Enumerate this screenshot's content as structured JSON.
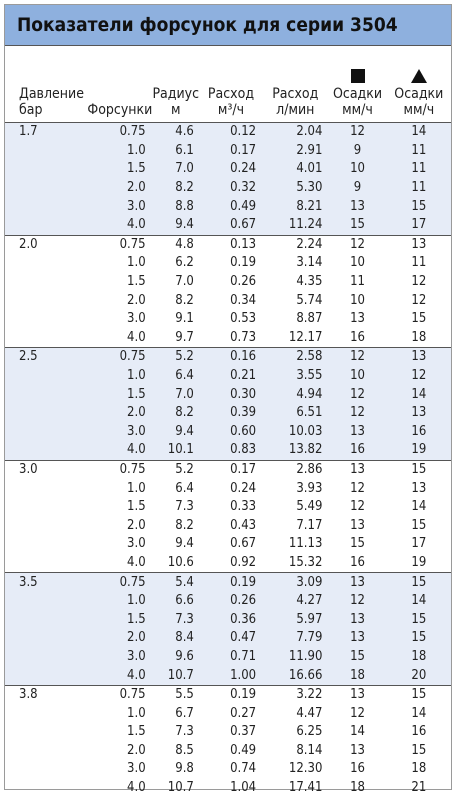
{
  "title": "Показатели форсунок для серии 3504",
  "header": [
    [
      "Давление",
      "бар"
    ],
    [
      "Форсунки",
      ""
    ],
    [
      "Радиус",
      "м"
    ],
    [
      "Расход",
      "м³/ч"
    ],
    [
      "Расход",
      "л/мин"
    ],
    [
      "Осадки",
      "мм/ч"
    ],
    [
      "Осадки",
      "мм/ч"
    ]
  ],
  "groups": [
    {
      "pressure": "1.7",
      "rows": [
        [
          "0.75",
          "4.6",
          "0.12",
          "2.04",
          "12",
          "14"
        ],
        [
          "1.0",
          "6.1",
          "0.17",
          "2.91",
          "9",
          "11"
        ],
        [
          "1.5",
          "7.0",
          "0.24",
          "4.01",
          "10",
          "11"
        ],
        [
          "2.0",
          "8.2",
          "0.32",
          "5.30",
          "9",
          "11"
        ],
        [
          "3.0",
          "8.8",
          "0.49",
          "8.21",
          "13",
          "15"
        ],
        [
          "4.0",
          "9.4",
          "0.67",
          "11.24",
          "15",
          "17"
        ]
      ]
    },
    {
      "pressure": "2.0",
      "rows": [
        [
          "0.75",
          "4.8",
          "0.13",
          "2.24",
          "12",
          "13"
        ],
        [
          "1.0",
          "6.2",
          "0.19",
          "3.14",
          "10",
          "11"
        ],
        [
          "1.5",
          "7.0",
          "0.26",
          "4.35",
          "11",
          "12"
        ],
        [
          "2.0",
          "8.2",
          "0.34",
          "5.74",
          "10",
          "12"
        ],
        [
          "3.0",
          "9.1",
          "0.53",
          "8.87",
          "13",
          "15"
        ],
        [
          "4.0",
          "9.7",
          "0.73",
          "12.17",
          "16",
          "18"
        ]
      ]
    },
    {
      "pressure": "2.5",
      "rows": [
        [
          "0.75",
          "5.2",
          "0.16",
          "2.58",
          "12",
          "13"
        ],
        [
          "1.0",
          "6.4",
          "0.21",
          "3.55",
          "10",
          "12"
        ],
        [
          "1.5",
          "7.0",
          "0.30",
          "4.94",
          "12",
          "14"
        ],
        [
          "2.0",
          "8.2",
          "0.39",
          "6.51",
          "12",
          "13"
        ],
        [
          "3.0",
          "9.4",
          "0.60",
          "10.03",
          "13",
          "16"
        ],
        [
          "4.0",
          "10.1",
          "0.83",
          "13.82",
          "16",
          "19"
        ]
      ]
    },
    {
      "pressure": "3.0",
      "rows": [
        [
          "0.75",
          "5.2",
          "0.17",
          "2.86",
          "13",
          "15"
        ],
        [
          "1.0",
          "6.4",
          "0.24",
          "3.93",
          "12",
          "13"
        ],
        [
          "1.5",
          "7.3",
          "0.33",
          "5.49",
          "12",
          "14"
        ],
        [
          "2.0",
          "8.2",
          "0.43",
          "7.17",
          "13",
          "15"
        ],
        [
          "3.0",
          "9.4",
          "0.67",
          "11.13",
          "15",
          "17"
        ],
        [
          "4.0",
          "10.6",
          "0.92",
          "15.32",
          "16",
          "19"
        ]
      ]
    },
    {
      "pressure": "3.5",
      "rows": [
        [
          "0.75",
          "5.4",
          "0.19",
          "3.09",
          "13",
          "15"
        ],
        [
          "1.0",
          "6.6",
          "0.26",
          "4.27",
          "12",
          "14"
        ],
        [
          "1.5",
          "7.3",
          "0.36",
          "5.97",
          "13",
          "15"
        ],
        [
          "2.0",
          "8.4",
          "0.47",
          "7.79",
          "13",
          "15"
        ],
        [
          "3.0",
          "9.6",
          "0.71",
          "11.90",
          "15",
          "18"
        ],
        [
          "4.0",
          "10.7",
          "1.00",
          "16.66",
          "18",
          "20"
        ]
      ]
    },
    {
      "pressure": "3.8",
      "rows": [
        [
          "0.75",
          "5.5",
          "0.19",
          "3.22",
          "13",
          "15"
        ],
        [
          "1.0",
          "6.7",
          "0.27",
          "4.47",
          "12",
          "14"
        ],
        [
          "1.5",
          "7.3",
          "0.37",
          "6.25",
          "14",
          "16"
        ],
        [
          "2.0",
          "8.5",
          "0.49",
          "8.14",
          "13",
          "15"
        ],
        [
          "3.0",
          "9.8",
          "0.74",
          "12.30",
          "16",
          "18"
        ],
        [
          "4.0",
          "10.7",
          "1.04",
          "17.41",
          "18",
          "21"
        ]
      ]
    }
  ]
}
